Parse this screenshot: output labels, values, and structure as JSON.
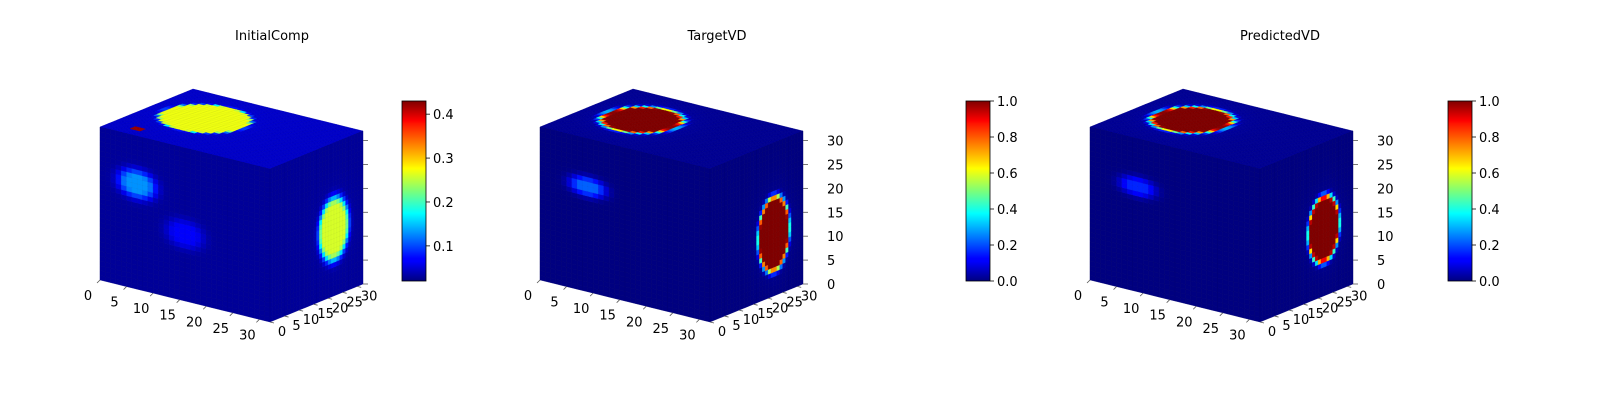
{
  "figure": {
    "background": "#ffffff"
  },
  "chart_data": [
    {
      "type": "heatmap",
      "title": "InitialComp",
      "projection": "3d-voxel-cube",
      "colormap": "jet",
      "xlabel": "",
      "ylabel": "",
      "zlabel": "",
      "x_ticks": [
        "0",
        "5",
        "10",
        "15",
        "20",
        "25",
        "30"
      ],
      "y_ticks": [
        "0",
        "5",
        "10",
        "15",
        "20",
        "25",
        "30"
      ],
      "z_ticks": [],
      "xlim": [
        0,
        32
      ],
      "ylim": [
        0,
        32
      ],
      "zlim": [
        0,
        32
      ],
      "colorbar": {
        "min": 0.02,
        "max": 0.43,
        "ticks": [
          "0.1",
          "0.2",
          "0.3",
          "0.4"
        ],
        "tick_values": [
          0.1,
          0.2,
          0.3,
          0.4
        ]
      },
      "top_face": {
        "base": 0.05,
        "blobs": [
          {
            "u": 10,
            "v": 18,
            "ru": 8,
            "rv": 10,
            "peak": 0.27,
            "core": 0.85
          },
          {
            "u": 5,
            "v": 4,
            "ru": 0.9,
            "rv": 1.4,
            "peak": 0.42,
            "core": 0.9
          }
        ]
      },
      "front_face": {
        "base": 0.03,
        "blobs": [
          {
            "u": 7,
            "v": 22,
            "ru": 6,
            "rv": 5,
            "peak": 0.13,
            "core": 0.3
          },
          {
            "u": 16,
            "v": 14,
            "ru": 6,
            "rv": 5,
            "peak": 0.07,
            "core": 0.3
          }
        ]
      },
      "side_face": {
        "base": 0.03,
        "blobs": [
          {
            "u": 22,
            "v": 14,
            "ru": 7,
            "rv": 9,
            "peak": 0.26,
            "core": 0.55
          }
        ]
      }
    },
    {
      "type": "heatmap",
      "title": "TargetVD",
      "projection": "3d-voxel-cube",
      "colormap": "jet",
      "xlabel": "",
      "ylabel": "",
      "zlabel": "",
      "x_ticks": [
        "0",
        "5",
        "10",
        "15",
        "20",
        "25",
        "30"
      ],
      "y_ticks": [
        "0",
        "5",
        "10",
        "15",
        "20",
        "25",
        "30"
      ],
      "z_ticks": [
        "0",
        "5",
        "10",
        "15",
        "20",
        "25",
        "30"
      ],
      "xlim": [
        0,
        32
      ],
      "ylim": [
        0,
        32
      ],
      "zlim": [
        0,
        32
      ],
      "colorbar": {
        "min": 0.0,
        "max": 1.0,
        "ticks": [
          "0.0",
          "0.2",
          "0.4",
          "0.6",
          "0.8",
          "1.0"
        ],
        "tick_values": [
          0,
          0.2,
          0.4,
          0.6,
          0.8,
          1.0
        ]
      },
      "top_face": {
        "base": 0.02,
        "blobs": [
          {
            "u": 10,
            "v": 17,
            "ru": 7.5,
            "rv": 10.5,
            "peak": 1.0,
            "core": 0.72
          }
        ]
      },
      "front_face": {
        "base": 0.0,
        "blobs": [
          {
            "u": 9,
            "v": 22,
            "ru": 6,
            "rv": 3.5,
            "peak": 0.22,
            "core": 0.25
          }
        ]
      },
      "side_face": {
        "base": 0.0,
        "blobs": [
          {
            "u": 22,
            "v": 13,
            "ru": 6.5,
            "rv": 9.5,
            "peak": 1.0,
            "core": 0.72
          }
        ]
      }
    },
    {
      "type": "heatmap",
      "title": "PredictedVD",
      "projection": "3d-voxel-cube",
      "colormap": "jet",
      "xlabel": "",
      "ylabel": "",
      "zlabel": "",
      "x_ticks": [
        "0",
        "5",
        "10",
        "15",
        "20",
        "25",
        "30"
      ],
      "y_ticks": [
        "0",
        "5",
        "10",
        "15",
        "20",
        "25",
        "30"
      ],
      "z_ticks": [
        "0",
        "5",
        "10",
        "15",
        "20",
        "25",
        "30"
      ],
      "xlim": [
        0,
        32
      ],
      "ylim": [
        0,
        32
      ],
      "zlim": [
        0,
        32
      ],
      "colorbar": {
        "min": 0.0,
        "max": 1.0,
        "ticks": [
          "0.0",
          "0.2",
          "0.4",
          "0.6",
          "0.8",
          "1.0"
        ],
        "tick_values": [
          0,
          0.2,
          0.4,
          0.6,
          0.8,
          1.0
        ]
      },
      "top_face": {
        "base": 0.02,
        "blobs": [
          {
            "u": 10,
            "v": 17,
            "ru": 7.5,
            "rv": 10.5,
            "peak": 1.0,
            "core": 0.72
          }
        ]
      },
      "front_face": {
        "base": 0.0,
        "blobs": [
          {
            "u": 9,
            "v": 22,
            "ru": 6,
            "rv": 3.5,
            "peak": 0.16,
            "core": 0.25
          }
        ]
      },
      "side_face": {
        "base": 0.0,
        "blobs": [
          {
            "u": 22,
            "v": 14,
            "ru": 6.5,
            "rv": 8.5,
            "peak": 1.0,
            "core": 0.72
          }
        ]
      }
    }
  ]
}
